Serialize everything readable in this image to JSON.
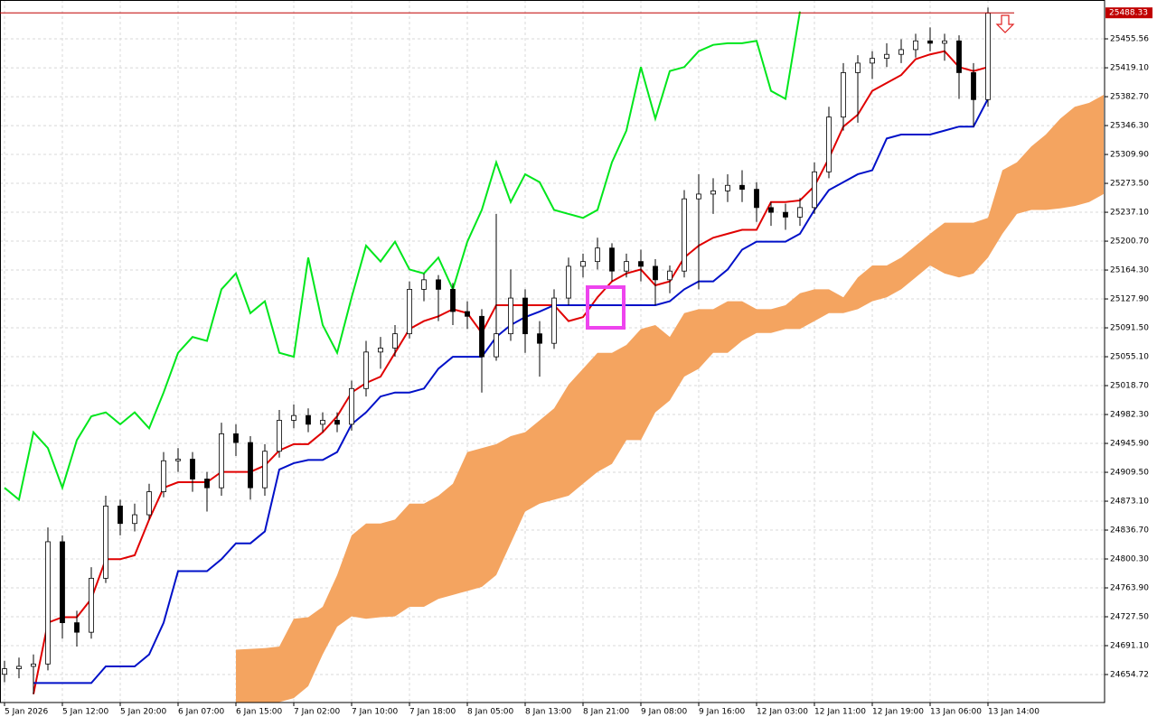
{
  "chart_data": {
    "type": "candlestick",
    "categories": [
      "5 Jan 2026",
      null,
      null,
      null,
      "5 Jan 12:00",
      null,
      null,
      null,
      "5 Jan 20:00",
      null,
      null,
      null,
      "6 Jan 07:00",
      null,
      null,
      null,
      "6 Jan 15:00",
      null,
      null,
      null,
      "7 Jan 02:00",
      null,
      null,
      null,
      "7 Jan 10:00",
      null,
      null,
      null,
      "7 Jan 18:00",
      null,
      null,
      null,
      "8 Jan 05:00",
      null,
      null,
      null,
      "8 Jan 13:00",
      null,
      null,
      null,
      "8 Jan 21:00",
      null,
      null,
      null,
      "9 Jan 08:00",
      null,
      null,
      null,
      "9 Jan 16:00",
      null,
      null,
      null,
      "12 Jan 03:00",
      null,
      null,
      null,
      "12 Jan 11:00",
      null,
      null,
      null,
      "12 Jan 19:00",
      null,
      null,
      null,
      "13 Jan 06:00",
      null,
      null,
      null,
      "13 Jan 14:00",
      null,
      null,
      null,
      null,
      null,
      null,
      null,
      null
    ],
    "open": [
      24655,
      24662,
      24665,
      24668,
      24822,
      24720,
      24708,
      24776,
      24867,
      24845,
      24856,
      24885,
      24924,
      24926,
      24901,
      24890,
      24958,
      24947,
      24890,
      24936,
      24975,
      24981,
      24970,
      24975,
      24970,
      25015,
      25061,
      25066,
      25084,
      25140,
      25152,
      25140,
      25112,
      25106,
      25055,
      25084,
      25129,
      25084,
      25072,
      25129,
      25169,
      25175,
      25192,
      25163,
      25175,
      25169,
      25152,
      25163,
      25254,
      25260,
      25264,
      25271,
      25266,
      25243,
      25237,
      25231,
      25243,
      25288,
      25357,
      25413,
      25425,
      25431,
      25436,
      25442,
      25453,
      25450,
      25453,
      25413,
      25379,
      null,
      null,
      null,
      null,
      null,
      null,
      null,
      null
    ],
    "high": [
      24672,
      24676,
      24680,
      24840,
      24830,
      24735,
      24790,
      24880,
      24875,
      24870,
      24895,
      24935,
      24940,
      24935,
      24910,
      24972,
      24970,
      24955,
      24945,
      24988,
      24995,
      24990,
      24985,
      24985,
      25025,
      25075,
      25080,
      25095,
      25150,
      25160,
      25158,
      25148,
      25125,
      25115,
      25235,
      25165,
      25140,
      25100,
      25140,
      25180,
      25185,
      25205,
      25198,
      25185,
      25190,
      25178,
      25170,
      25265,
      25285,
      25280,
      25285,
      25290,
      25275,
      25250,
      25248,
      25255,
      25300,
      25370,
      25425,
      25435,
      25440,
      25450,
      25455,
      25462,
      25470,
      25462,
      25460,
      25425,
      25495,
      null,
      null,
      null,
      null,
      null,
      null,
      null,
      null
    ],
    "low": [
      24645,
      24650,
      24630,
      24660,
      24700,
      24690,
      24700,
      24770,
      24830,
      24835,
      24850,
      24878,
      24910,
      24885,
      24860,
      24880,
      24930,
      24875,
      24880,
      24928,
      24965,
      24960,
      24960,
      24960,
      24962,
      25005,
      25040,
      25055,
      25078,
      25125,
      25100,
      25095,
      25090,
      25010,
      25050,
      25075,
      25060,
      25030,
      25065,
      25120,
      25155,
      25165,
      25150,
      25155,
      25150,
      25120,
      25135,
      25155,
      25140,
      25235,
      25250,
      25250,
      25225,
      25220,
      25215,
      25220,
      25235,
      25280,
      25340,
      25350,
      25405,
      25420,
      25425,
      25432,
      25440,
      25428,
      25380,
      25345,
      25370,
      null,
      null,
      null,
      null,
      null,
      null,
      null,
      null
    ],
    "close": [
      24662,
      24665,
      24668,
      24822,
      24720,
      24708,
      24776,
      24867,
      24845,
      24856,
      24885,
      24924,
      24926,
      24901,
      24890,
      24958,
      24947,
      24890,
      24936,
      24975,
      24981,
      24970,
      24975,
      24970,
      25015,
      25061,
      25066,
      25084,
      25140,
      25152,
      25140,
      25112,
      25106,
      25055,
      25084,
      25129,
      25084,
      25072,
      25129,
      25169,
      25175,
      25192,
      25163,
      25175,
      25169,
      25152,
      25163,
      25254,
      25260,
      25264,
      25271,
      25266,
      25243,
      25237,
      25231,
      25243,
      25288,
      25357,
      25413,
      25425,
      25431,
      25436,
      25442,
      25453,
      25450,
      25453,
      25413,
      25379,
      25488,
      null,
      null,
      null,
      null,
      null,
      null,
      null,
      null
    ],
    "up_color": "#ffffff",
    "down_color": "#000000",
    "lines": [
      {
        "color": "#00e61c",
        "values": [
          24890,
          24875,
          24960,
          24940,
          24890,
          24950,
          24980,
          24985,
          24970,
          24985,
          24965,
          25010,
          25060,
          25080,
          25075,
          25140,
          25160,
          25110,
          25125,
          25060,
          25055,
          25180,
          25095,
          25060,
          25130,
          25195,
          25175,
          25200,
          25165,
          25160,
          25180,
          25140,
          25200,
          25240,
          25300,
          25250,
          25285,
          25275,
          25240,
          25235,
          25230,
          25240,
          25300,
          25340,
          25420,
          25355,
          25415,
          25420,
          25440,
          25448,
          25450,
          25450,
          25453,
          25390,
          25380,
          25490,
          null,
          null,
          null,
          null,
          null,
          null,
          null,
          null,
          null,
          null,
          null,
          null,
          null,
          null,
          null,
          null,
          null,
          null,
          null,
          null,
          null
        ]
      },
      {
        "color": "#e00000",
        "values": [
          null,
          null,
          24630,
          24720,
          24727,
          24727,
          24750,
          24800,
          24800,
          24805,
          24850,
          24890,
          24897,
          24897,
          24897,
          24910,
          24910,
          24910,
          24918,
          24937,
          24945,
          24945,
          24960,
          24980,
          25010,
          25022,
          25030,
          25060,
          25090,
          25100,
          25106,
          25115,
          25110,
          25085,
          25120,
          25120,
          25120,
          25120,
          25120,
          25100,
          25105,
          25130,
          25150,
          25160,
          25165,
          25145,
          25150,
          25180,
          25195,
          25205,
          25210,
          25215,
          25215,
          25250,
          25250,
          25252,
          25270,
          25305,
          25345,
          25360,
          25390,
          25400,
          25410,
          25430,
          25436,
          25440,
          25420,
          25415,
          25420,
          null,
          null,
          null,
          null,
          null,
          null,
          null,
          null
        ]
      },
      {
        "color": "#0010c8",
        "values": [
          null,
          null,
          24644,
          24644,
          24644,
          24644,
          24644,
          24665,
          24665,
          24665,
          24680,
          24720,
          24785,
          24785,
          24785,
          24800,
          24820,
          24820,
          24835,
          24913,
          24921,
          24925,
          24925,
          24935,
          24970,
          24985,
          25005,
          25010,
          25010,
          25015,
          25040,
          25055,
          25055,
          25055,
          25080,
          25095,
          25105,
          25112,
          25120,
          25120,
          25120,
          25120,
          25120,
          25120,
          25120,
          25120,
          25125,
          25140,
          25150,
          25150,
          25165,
          25190,
          25200,
          25200,
          25200,
          25210,
          25240,
          25265,
          25275,
          25285,
          25290,
          25330,
          25335,
          25335,
          25335,
          25340,
          25345,
          25345,
          25380,
          null,
          null,
          null,
          null,
          null,
          null,
          null,
          null
        ]
      }
    ],
    "cloud": {
      "color": "#f4a460",
      "upper": [
        null,
        null,
        null,
        null,
        null,
        null,
        null,
        null,
        null,
        null,
        null,
        null,
        null,
        null,
        null,
        null,
        24686,
        24687,
        24688,
        24690,
        24725,
        24727,
        24740,
        24780,
        24830,
        24845,
        24845,
        24850,
        24870,
        24870,
        24880,
        24895,
        24935,
        24940,
        24945,
        24955,
        24960,
        24975,
        24990,
        25020,
        25040,
        25060,
        25060,
        25070,
        25090,
        25095,
        25080,
        25110,
        25115,
        25115,
        25125,
        25125,
        25115,
        25115,
        25120,
        25135,
        25140,
        25140,
        25130,
        25155,
        25170,
        25170,
        25180,
        25195,
        25210,
        25224,
        25224,
        25224,
        25230,
        25290,
        25300,
        25320,
        25335,
        25355,
        25370,
        25375,
        25385
      ],
      "lower": [
        null,
        null,
        null,
        null,
        null,
        null,
        null,
        null,
        null,
        null,
        null,
        null,
        null,
        null,
        null,
        null,
        24620,
        24620,
        24620,
        24620,
        24625,
        24640,
        24680,
        24715,
        24728,
        24725,
        24727,
        24728,
        24740,
        24740,
        24750,
        24755,
        24760,
        24765,
        24780,
        24820,
        24860,
        24870,
        24875,
        24880,
        24895,
        24910,
        24920,
        24950,
        24950,
        24985,
        25000,
        25030,
        25040,
        25060,
        25060,
        25075,
        25085,
        25085,
        25090,
        25090,
        25100,
        25110,
        25110,
        25115,
        25125,
        25130,
        25140,
        25155,
        25170,
        25160,
        25155,
        25160,
        25180,
        25210,
        25235,
        25240,
        25240,
        25242,
        25245,
        25250,
        25260
      ]
    },
    "current_price": 25488.33,
    "current_price_color": "#c00000",
    "ylim": [
      24619.45,
      25504.5
    ],
    "yticks": [
      25455.56,
      {
        "value": 25419.1,
        "label": "25419.10"
      },
      {
        "value": 25382.7,
        "label": "25382.70"
      },
      {
        "value": 25346.3,
        "label": "25346.30"
      },
      {
        "value": 25309.9,
        "label": "25309.90"
      },
      {
        "value": 25273.5,
        "label": "25273.50"
      },
      {
        "value": 25237.1,
        "label": "25237.10"
      },
      {
        "value": 25200.7,
        "label": "25200.70"
      },
      {
        "value": 25164.3,
        "label": "25164.30"
      },
      {
        "value": 25127.9,
        "label": "25127.90"
      },
      {
        "value": 25091.5,
        "label": "25091.50"
      },
      {
        "value": 25055.1,
        "label": "25055.10"
      },
      {
        "value": 25018.7,
        "label": "25018.70"
      },
      {
        "value": 24982.3,
        "label": "24982.30"
      },
      {
        "value": 24945.9,
        "label": "24945.90"
      },
      {
        "value": 24909.5,
        "label": "24909.50"
      },
      {
        "value": 24873.1,
        "label": "24873.10"
      },
      {
        "value": 24836.7,
        "label": "24836.70"
      },
      {
        "value": 24800.3,
        "label": "24800.30"
      },
      {
        "value": 24763.9,
        "label": "24763.90"
      },
      {
        "value": 24727.5,
        "label": "24727.50"
      },
      {
        "value": 24691.1,
        "label": "24691.10"
      },
      24654.72
    ],
    "grid": true
  }
}
